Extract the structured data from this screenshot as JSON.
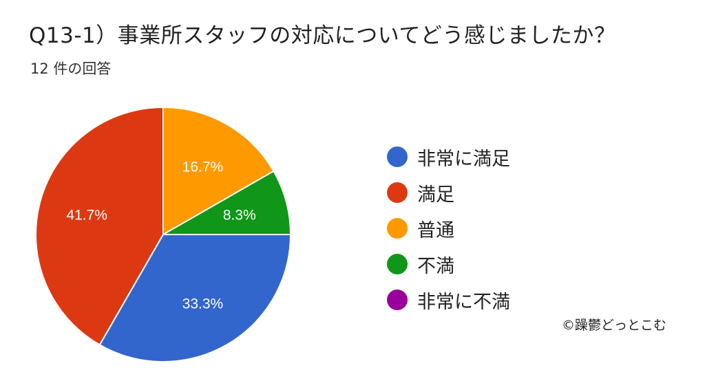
{
  "header": {
    "title": "Q13-1）事業所スタッフの対応についてどう感じましたか？",
    "subtitle": "12 件の回答"
  },
  "footer": {
    "credit": "©躁鬱どっとこむ"
  },
  "chart_data": {
    "type": "pie",
    "title": "Q13-1）事業所スタッフの対応についてどう感じましたか？",
    "subtitle": "12 件の回答",
    "categories": [
      "非常に満足",
      "満足",
      "普通",
      "不満",
      "非常に不満"
    ],
    "values": [
      33.3,
      41.7,
      16.7,
      8.3,
      0
    ],
    "labels": [
      "33.3%",
      "41.7%",
      "16.7%",
      "8.3%",
      ""
    ],
    "colors": [
      "#3366cc",
      "#dc3912",
      "#ff9900",
      "#109618",
      "#990099"
    ],
    "legend": "right"
  }
}
